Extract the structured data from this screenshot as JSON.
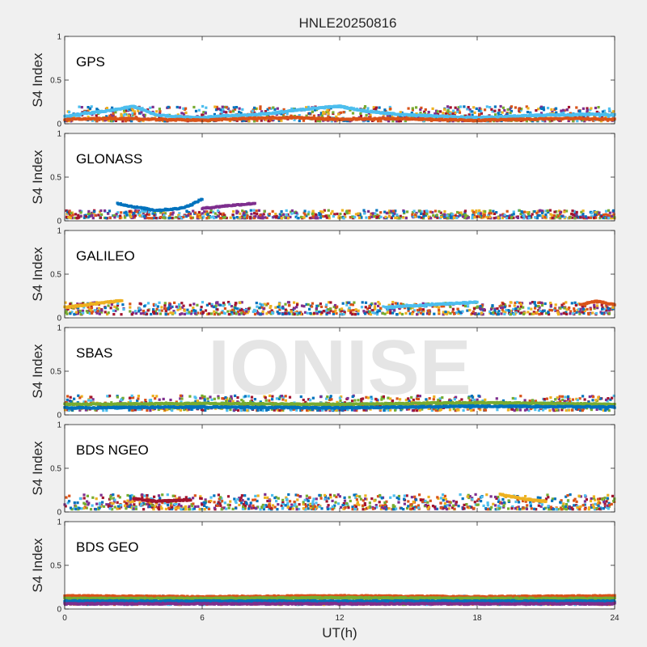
{
  "figure": {
    "title": "HNLE20250816",
    "xlabel": "UT(h)",
    "watermark": "IONISE",
    "colors": {
      "background": "#f0f0f0",
      "axes": "#ffffff",
      "axis_line": "#262626",
      "palette": [
        "#0072bd",
        "#d95319",
        "#edb120",
        "#7e2f8e",
        "#77ac30",
        "#4dbeee",
        "#a2142f"
      ]
    }
  },
  "chart_data": [
    {
      "type": "scatter",
      "name": "GPS",
      "ylabel": "S4 Index",
      "xlim": [
        0,
        24
      ],
      "ylim": [
        0,
        1
      ],
      "x_ticks": [
        0,
        6,
        12,
        18,
        24
      ],
      "y_ticks": [
        0,
        0.5,
        1
      ],
      "y_tick_labels": [
        "0",
        "0.5",
        "1"
      ],
      "legend": "none",
      "grid": false,
      "typical_s4_range": [
        0.03,
        0.2
      ],
      "series": [
        {
          "x": [
            0,
            1,
            2,
            3,
            4,
            5,
            6,
            7,
            8,
            9,
            10,
            11,
            12,
            13,
            14,
            15,
            16,
            17,
            18,
            19,
            20,
            21,
            22,
            23,
            24
          ],
          "y": [
            0.08,
            0.12,
            0.15,
            0.2,
            0.1,
            0.08,
            0.07,
            0.09,
            0.1,
            0.12,
            0.15,
            0.18,
            0.2,
            0.15,
            0.12,
            0.1,
            0.09,
            0.08,
            0.07,
            0.08,
            0.09,
            0.1,
            0.1,
            0.11,
            0.1
          ]
        },
        {
          "x": [
            0,
            2,
            4,
            6,
            8,
            10,
            12,
            14,
            16,
            18,
            20,
            22,
            24
          ],
          "y": [
            0.05,
            0.06,
            0.05,
            0.04,
            0.06,
            0.07,
            0.05,
            0.06,
            0.05,
            0.04,
            0.05,
            0.06,
            0.05
          ]
        }
      ]
    },
    {
      "type": "scatter",
      "name": "GLONASS",
      "ylabel": "S4 Index",
      "xlim": [
        0,
        24
      ],
      "ylim": [
        0,
        1
      ],
      "x_ticks": [
        0,
        6,
        12,
        18,
        24
      ],
      "y_ticks": [
        0,
        0.5,
        1
      ],
      "y_tick_labels": [
        "0",
        "0.5",
        "1"
      ],
      "legend": "none",
      "grid": false,
      "typical_s4_range": [
        0.03,
        0.12
      ],
      "series": [
        {
          "x": [
            2.3,
            3,
            4,
            5,
            5.5,
            6
          ],
          "y": [
            0.2,
            0.16,
            0.12,
            0.14,
            0.18,
            0.25
          ]
        },
        {
          "x": [
            6,
            7,
            8.3
          ],
          "y": [
            0.14,
            0.17,
            0.2
          ]
        }
      ]
    },
    {
      "type": "scatter",
      "name": "GALILEO",
      "ylabel": "S4 Index",
      "xlim": [
        0,
        24
      ],
      "ylim": [
        0,
        1
      ],
      "x_ticks": [
        0,
        6,
        12,
        18,
        24
      ],
      "y_ticks": [
        0,
        0.5,
        1
      ],
      "y_tick_labels": [
        "0",
        "0.5",
        "1"
      ],
      "legend": "none",
      "grid": false,
      "typical_s4_range": [
        0.04,
        0.18
      ],
      "series": [
        {
          "x": [
            0,
            1,
            2.5
          ],
          "y": [
            0.12,
            0.15,
            0.2
          ]
        },
        {
          "x": [
            14,
            16,
            18
          ],
          "y": [
            0.12,
            0.15,
            0.18
          ]
        },
        {
          "x": [
            22.5,
            23.2,
            24
          ],
          "y": [
            0.15,
            0.19,
            0.15
          ]
        }
      ]
    },
    {
      "type": "scatter",
      "name": "SBAS",
      "ylabel": "S4 Index",
      "xlim": [
        0,
        24
      ],
      "ylim": [
        0,
        1
      ],
      "x_ticks": [
        0,
        6,
        12,
        18,
        24
      ],
      "y_ticks": [
        0,
        0.5,
        1
      ],
      "y_tick_labels": [
        "0",
        "0.5",
        "1"
      ],
      "legend": "none",
      "grid": false,
      "typical_s4_range": [
        0.05,
        0.22
      ],
      "series": [
        {
          "x": [
            0,
            6,
            12,
            18,
            24
          ],
          "y": [
            0.12,
            0.13,
            0.12,
            0.14,
            0.12
          ]
        },
        {
          "x": [
            0,
            6,
            12,
            18,
            24
          ],
          "y": [
            0.08,
            0.09,
            0.08,
            0.1,
            0.09
          ]
        }
      ]
    },
    {
      "type": "scatter",
      "name": "BDS NGEO",
      "ylabel": "S4 Index",
      "xlim": [
        0,
        24
      ],
      "ylim": [
        0,
        1
      ],
      "x_ticks": [
        0,
        6,
        12,
        18,
        24
      ],
      "y_ticks": [
        0,
        0.5,
        1
      ],
      "y_tick_labels": [
        "0",
        "0.5",
        "1"
      ],
      "legend": "none",
      "grid": false,
      "typical_s4_range": [
        0.03,
        0.2
      ],
      "series": [
        {
          "x": [
            3,
            4,
            5.5
          ],
          "y": [
            0.15,
            0.12,
            0.14
          ]
        },
        {
          "x": [
            19,
            20,
            21
          ],
          "y": [
            0.2,
            0.15,
            0.12
          ]
        }
      ]
    },
    {
      "type": "scatter",
      "name": "BDS GEO",
      "ylabel": "S4 Index",
      "xlim": [
        0,
        24
      ],
      "ylim": [
        0,
        1
      ],
      "x_ticks": [
        0,
        6,
        12,
        18,
        24
      ],
      "y_ticks": [
        0,
        0.5,
        1
      ],
      "y_tick_labels": [
        "0",
        "0.5",
        "1"
      ],
      "legend": "none",
      "grid": false,
      "typical_s4_range": [
        0.05,
        0.15
      ],
      "series": [
        {
          "x": [
            0,
            6,
            12,
            18,
            24
          ],
          "y": [
            0.15,
            0.14,
            0.15,
            0.14,
            0.15
          ]
        },
        {
          "x": [
            0,
            6,
            12,
            18,
            24
          ],
          "y": [
            0.12,
            0.12,
            0.13,
            0.12,
            0.12
          ]
        },
        {
          "x": [
            0,
            6,
            12,
            18,
            24
          ],
          "y": [
            0.09,
            0.09,
            0.09,
            0.09,
            0.09
          ]
        },
        {
          "x": [
            0,
            6,
            12,
            18,
            24
          ],
          "y": [
            0.06,
            0.06,
            0.06,
            0.06,
            0.06
          ]
        }
      ]
    }
  ]
}
